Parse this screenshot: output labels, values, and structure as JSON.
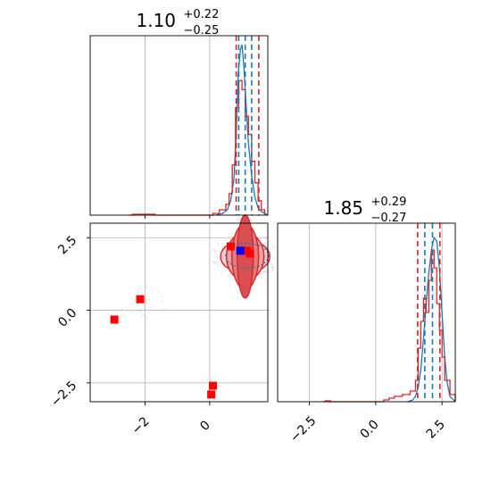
{
  "colors": {
    "red": "#d62728",
    "blue": "#1f77b4",
    "marker_red": "#ff0000",
    "marker_blue": "#0000ff",
    "grid": "#b0b0b0"
  },
  "titles": {
    "param1": {
      "main": "1.10",
      "plus": "+0.22",
      "minus": "−0.25"
    },
    "param2": {
      "main": "1.85",
      "plus": "+0.29",
      "minus": "−0.27"
    }
  },
  "chart_data": [
    {
      "type": "line",
      "panel": "top-left marginal histogram",
      "x_range": [
        -3.7,
        1.8
      ],
      "grid_x": [
        -2,
        0
      ],
      "vlines_red": [
        0.82,
        1.52
      ],
      "vlines_blue": [
        0.9,
        1.1,
        1.3
      ],
      "series": [
        {
          "color": "blue",
          "x": [
            0.2,
            0.4,
            0.55,
            0.65,
            0.75,
            0.82,
            0.88,
            0.95,
            1.0,
            1.05,
            1.1,
            1.15,
            1.2,
            1.3,
            1.4,
            1.5,
            1.6,
            1.7,
            1.8
          ],
          "y": [
            0,
            0.01,
            0.03,
            0.08,
            0.2,
            0.45,
            0.78,
            0.92,
            0.95,
            0.85,
            0.7,
            0.55,
            0.4,
            0.22,
            0.1,
            0.04,
            0.02,
            0.01,
            0
          ]
        },
        {
          "color": "red",
          "x": [
            -2.5,
            -2.4,
            -1.8,
            -1.7,
            0.0,
            0.1,
            0.3,
            0.5,
            0.6,
            0.7,
            0.8,
            0.9,
            1.0,
            1.1,
            1.2,
            1.3,
            1.4,
            1.5,
            1.6,
            1.7
          ],
          "y": [
            0,
            0.005,
            0.005,
            0,
            0,
            0.01,
            0.03,
            0.06,
            0.12,
            0.28,
            0.6,
            0.75,
            0.7,
            0.55,
            0.45,
            0.3,
            0.18,
            0.08,
            0.03,
            0
          ]
        }
      ]
    },
    {
      "type": "scatter",
      "panel": "bottom-left 2D contour",
      "x_range": [
        -3.7,
        1.8
      ],
      "y_range": [
        -3.15,
        3.0
      ],
      "xticks": [
        "−2",
        "0"
      ],
      "xtick_values": [
        -2,
        0
      ],
      "yticks": [
        "2.5",
        "0.0",
        "−2.5"
      ],
      "ytick_values": [
        2.5,
        0.0,
        -2.5
      ],
      "contours_red": [
        [
          0.55,
          0.22
        ],
        [
          0.42,
          0.34
        ],
        [
          0.3,
          0.48
        ],
        [
          0.18,
          0.62
        ]
      ],
      "contour_center": [
        1.1,
        1.85
      ],
      "markers_red": [
        [
          -2.15,
          0.38
        ],
        [
          -2.95,
          -0.32
        ],
        [
          0.1,
          -2.6
        ],
        [
          0.05,
          -2.9
        ],
        [
          0.65,
          2.2
        ],
        [
          1.15,
          2.05
        ],
        [
          1.25,
          1.95
        ]
      ],
      "markers_blue": [
        [
          0.95,
          2.05
        ]
      ]
    },
    {
      "type": "line",
      "panel": "bottom-right marginal histogram",
      "x_range": [
        -3.7,
        3.0
      ],
      "xticks": [
        "−2.5",
        "0.0",
        "2.5"
      ],
      "xtick_values": [
        -2.5,
        0.0,
        2.5
      ],
      "vlines_red": [
        1.58,
        2.42
      ],
      "vlines_blue": [
        1.85,
        2.14
      ],
      "series": [
        {
          "color": "blue",
          "x": [
            1.2,
            1.4,
            1.5,
            1.6,
            1.7,
            1.8,
            1.9,
            2.0,
            2.1,
            2.2,
            2.3,
            2.4,
            2.5,
            2.6,
            2.7,
            2.8,
            3.0
          ],
          "y": [
            0,
            0.01,
            0.03,
            0.08,
            0.18,
            0.35,
            0.55,
            0.72,
            0.85,
            0.92,
            0.9,
            0.75,
            0.5,
            0.25,
            0.1,
            0.03,
            0
          ]
        },
        {
          "color": "red",
          "x": [
            -2.0,
            -1.9,
            -1.7,
            0.2,
            0.3,
            0.5,
            0.7,
            1.0,
            1.3,
            1.5,
            1.6,
            1.7,
            1.8,
            1.9,
            2.0,
            2.1,
            2.2,
            2.3,
            2.4,
            2.5,
            2.6,
            2.8,
            3.0
          ],
          "y": [
            0,
            0.005,
            0,
            0,
            0.01,
            0.02,
            0.03,
            0.04,
            0.06,
            0.12,
            0.3,
            0.45,
            0.58,
            0.5,
            0.68,
            0.85,
            0.75,
            0.55,
            0.4,
            0.25,
            0.12,
            0.04,
            0
          ]
        }
      ]
    }
  ]
}
